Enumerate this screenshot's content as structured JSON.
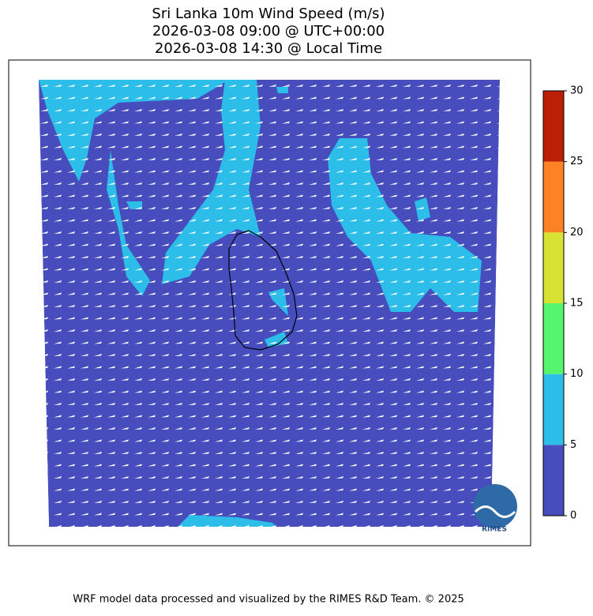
{
  "title": [
    "Sri Lanka 10m Wind Speed (m/s)",
    "2026-03-08 09:00 @ UTC+00:00",
    "2026-03-08 14:30 @ Local Time"
  ],
  "colorbar": {
    "ticks": [
      0,
      5,
      10,
      15,
      20,
      25,
      30
    ],
    "colors": [
      "#474dbd",
      "#2cbde9",
      "#55f56d",
      "#d8e232",
      "#fc8223",
      "#bb1f05"
    ]
  },
  "logo_text": "RIMES",
  "footer": "WRF model data processed and visualized by the RIMES R&D Team. © 2025"
}
